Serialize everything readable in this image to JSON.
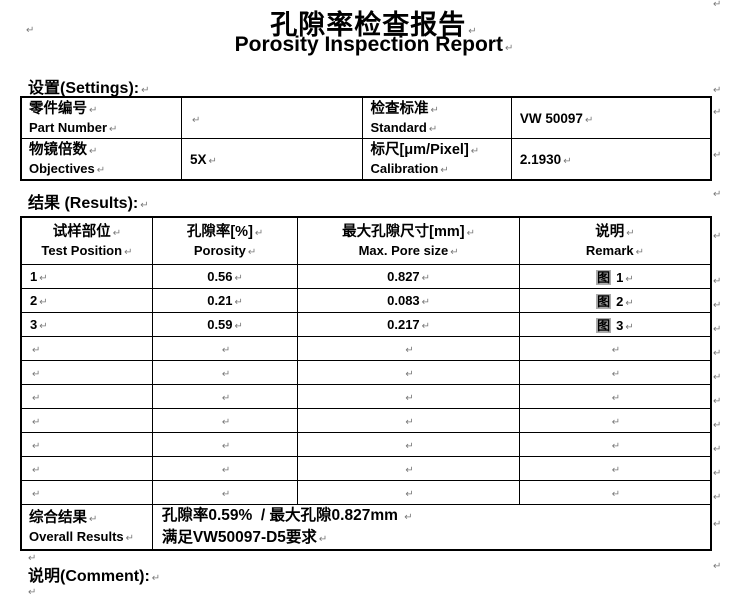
{
  "marks": {
    "return": "↵"
  },
  "colors": {
    "field_shading": "#ababab",
    "mark_gray": "#7a7a7a",
    "border": "#000000"
  },
  "title": {
    "zh": "孔隙率检查报告",
    "en": "Porosity Inspection Report"
  },
  "sections": {
    "settings": "设置(Settings):",
    "results": "结果 (Results):",
    "comment": "说明(Comment):"
  },
  "settings_table": {
    "rows": [
      {
        "label1_zh": "零件编号",
        "label1_en": "Part Number",
        "value1": "",
        "label2_zh": "检查标准",
        "label2_en": "Standard",
        "value2": "VW 50097"
      },
      {
        "label1_zh": "物镜倍数",
        "label1_en": "Objectives",
        "value1": "5X",
        "label2_zh": "标尺[μm/Pixel]",
        "label2_en": "Calibration",
        "value2": "2.1930"
      }
    ]
  },
  "results_table": {
    "headers": [
      {
        "zh": "试样部位",
        "en": "Test Position"
      },
      {
        "zh": "孔隙率[%]",
        "en": "Porosity"
      },
      {
        "zh": "最大孔隙尺寸[mm]",
        "en": "Max.  Pore size"
      },
      {
        "zh": "说明",
        "en": "Remark"
      }
    ],
    "rows": [
      {
        "position": "1",
        "porosity": "0.56",
        "max_pore": "0.827",
        "remark_fig": "图",
        "remark_num": "1"
      },
      {
        "position": "2",
        "porosity": "0.21",
        "max_pore": "0.083",
        "remark_fig": "图",
        "remark_num": "2"
      },
      {
        "position": "3",
        "porosity": "0.59",
        "max_pore": "0.217",
        "remark_fig": "图",
        "remark_num": "3"
      }
    ],
    "empty_row_count": 7,
    "overall": {
      "label_zh": "综合结果",
      "label_en": "Overall Results",
      "line1": "孔隙率0.59%  / 最大孔隙0.827mm ",
      "line2": "满足VW50097-D5要求"
    }
  }
}
